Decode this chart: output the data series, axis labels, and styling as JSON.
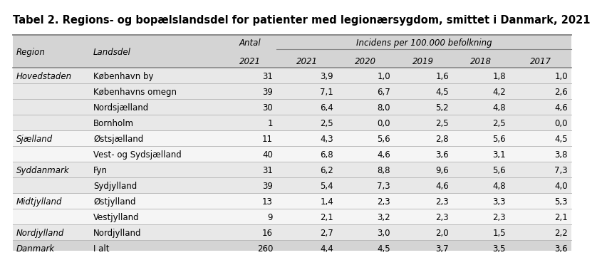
{
  "title": "Tabel 2. Regions- og bopælslandsdel for patienter med legionærsygdom, smittet i Danmark, 2021",
  "rows": [
    [
      "Hovedstaden",
      "København by",
      "31",
      "3,9",
      "1,0",
      "1,6",
      "1,8",
      "1,0"
    ],
    [
      "",
      "Københavns omegn",
      "39",
      "7,1",
      "6,7",
      "4,5",
      "4,2",
      "2,6"
    ],
    [
      "",
      "Nordsjælland",
      "30",
      "6,4",
      "8,0",
      "5,2",
      "4,8",
      "4,6"
    ],
    [
      "",
      "Bornholm",
      "1",
      "2,5",
      "0,0",
      "2,5",
      "2,5",
      "0,0"
    ],
    [
      "Sjælland",
      "Østsjælland",
      "11",
      "4,3",
      "5,6",
      "2,8",
      "5,6",
      "4,5"
    ],
    [
      "",
      "Vest- og Sydsjælland",
      "40",
      "6,8",
      "4,6",
      "3,6",
      "3,1",
      "3,8"
    ],
    [
      "Syddanmark",
      "Fyn",
      "31",
      "6,2",
      "8,8",
      "9,6",
      "5,6",
      "7,3"
    ],
    [
      "",
      "Sydjylland",
      "39",
      "5,4",
      "7,3",
      "4,6",
      "4,8",
      "4,0"
    ],
    [
      "Midtjylland",
      "Østjylland",
      "13",
      "1,4",
      "2,3",
      "2,3",
      "3,3",
      "5,3"
    ],
    [
      "",
      "Vestjylland",
      "9",
      "2,1",
      "3,2",
      "2,3",
      "2,3",
      "2,1"
    ],
    [
      "Nordjylland",
      "Nordjylland",
      "16",
      "2,7",
      "3,0",
      "2,0",
      "1,5",
      "2,2"
    ],
    [
      "Danmark",
      "I alt",
      "260",
      "4,4",
      "4,5",
      "3,7",
      "3,5",
      "3,6"
    ]
  ],
  "region_row_map": {
    "Hovedstaden": "#e8e8e8",
    "Sjælland": "#f5f5f5",
    "Syddanmark": "#e8e8e8",
    "Midtjylland": "#f5f5f5",
    "Nordjylland": "#e8e8e8",
    "Danmark": "#d4d4d4"
  },
  "header_bg": "#d4d4d4",
  "line_color_heavy": "#888888",
  "line_color_light": "#bbbbbb",
  "bg_color": "#ffffff",
  "text_color": "#000000",
  "title_fontsize": 10.5,
  "body_fontsize": 8.5
}
